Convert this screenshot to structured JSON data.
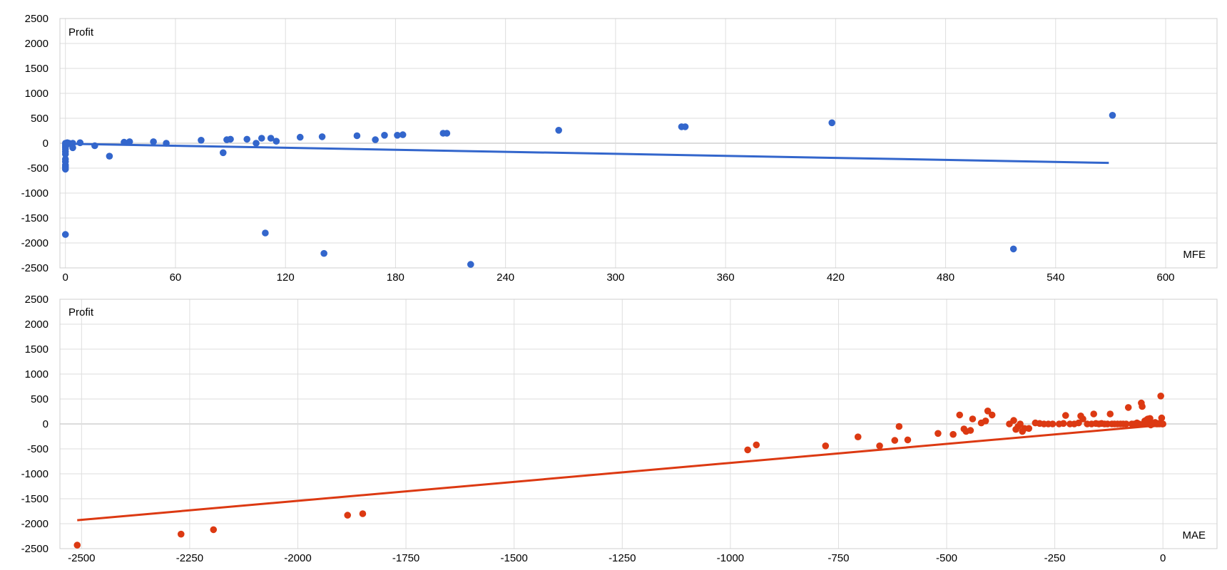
{
  "chart_data": [
    {
      "type": "scatter",
      "ylabel": "Profit",
      "xlabel": "MFE",
      "xlim": [
        -3,
        628
      ],
      "ylim": [
        -2500,
        2500
      ],
      "xticks": [
        0,
        60,
        120,
        180,
        240,
        300,
        360,
        420,
        480,
        540,
        600
      ],
      "yticks": [
        2500,
        2000,
        1500,
        1000,
        500,
        0,
        -500,
        -1000,
        -1500,
        -2000,
        -2500
      ],
      "grid": true,
      "colors": {
        "points": "#3366cc",
        "trend": "#3366cc"
      },
      "series": [
        {
          "points": [
            [
              0,
              0
            ],
            [
              0,
              -40
            ],
            [
              0,
              -80
            ],
            [
              0,
              -120
            ],
            [
              0,
              -170
            ],
            [
              0,
              -220
            ],
            [
              0,
              -320
            ],
            [
              0,
              -370
            ],
            [
              0,
              -440
            ],
            [
              0,
              -480
            ],
            [
              0,
              -520
            ],
            [
              0,
              -1830
            ],
            [
              1,
              10
            ],
            [
              1,
              -20
            ],
            [
              2,
              0
            ],
            [
              4,
              0
            ],
            [
              4,
              -90
            ],
            [
              8,
              10
            ],
            [
              16,
              -50
            ],
            [
              24,
              -260
            ],
            [
              32,
              20
            ],
            [
              35,
              30
            ],
            [
              48,
              30
            ],
            [
              55,
              0
            ],
            [
              74,
              60
            ],
            [
              86,
              -190
            ],
            [
              88,
              70
            ],
            [
              90,
              80
            ],
            [
              99,
              80
            ],
            [
              104,
              0
            ],
            [
              107,
              100
            ],
            [
              109,
              -1800
            ],
            [
              112,
              100
            ],
            [
              115,
              40
            ],
            [
              128,
              120
            ],
            [
              140,
              130
            ],
            [
              141,
              -2210
            ],
            [
              159,
              150
            ],
            [
              169,
              70
            ],
            [
              174,
              160
            ],
            [
              181,
              160
            ],
            [
              184,
              170
            ],
            [
              206,
              200
            ],
            [
              208,
              200
            ],
            [
              221,
              -2430
            ],
            [
              269,
              260
            ],
            [
              336,
              330
            ],
            [
              338,
              330
            ],
            [
              418,
              410
            ],
            [
              517,
              -2120
            ],
            [
              571,
              560
            ]
          ]
        }
      ],
      "trendline": {
        "x": [
          0,
          569
        ],
        "y": [
          -10,
          -395
        ]
      }
    },
    {
      "type": "scatter",
      "ylabel": "Profit",
      "xlabel": "MAE",
      "xlim": [
        -2550,
        125
      ],
      "ylim": [
        -2500,
        2500
      ],
      "xticks": [
        -2500,
        -2250,
        -2000,
        -1750,
        -1500,
        -1250,
        -1000,
        -750,
        -500,
        -250,
        0
      ],
      "yticks": [
        2500,
        2000,
        1500,
        1000,
        500,
        0,
        -500,
        -1000,
        -1500,
        -2000,
        -2500
      ],
      "grid": true,
      "colors": {
        "points": "#dc3912",
        "trend": "#dc3912"
      },
      "series": [
        {
          "points": [
            [
              -2510,
              -2430
            ],
            [
              -2270,
              -2210
            ],
            [
              -2195,
              -2120
            ],
            [
              -1885,
              -1830
            ],
            [
              -1850,
              -1800
            ],
            [
              -960,
              -520
            ],
            [
              -940,
              -420
            ],
            [
              -780,
              -440
            ],
            [
              -705,
              -260
            ],
            [
              -655,
              -440
            ],
            [
              -620,
              -330
            ],
            [
              -610,
              -50
            ],
            [
              -590,
              -320
            ],
            [
              -520,
              -190
            ],
            [
              -485,
              -210
            ],
            [
              -470,
              180
            ],
            [
              -460,
              -100
            ],
            [
              -455,
              -150
            ],
            [
              -445,
              -130
            ],
            [
              -440,
              100
            ],
            [
              -420,
              20
            ],
            [
              -410,
              60
            ],
            [
              -405,
              260
            ],
            [
              -395,
              180
            ],
            [
              -355,
              0
            ],
            [
              -345,
              70
            ],
            [
              -340,
              -110
            ],
            [
              -335,
              -50
            ],
            [
              -330,
              0
            ],
            [
              -325,
              -150
            ],
            [
              -320,
              -90
            ],
            [
              -310,
              -90
            ],
            [
              -295,
              20
            ],
            [
              -285,
              10
            ],
            [
              -275,
              0
            ],
            [
              -265,
              0
            ],
            [
              -255,
              0
            ],
            [
              -240,
              0
            ],
            [
              -230,
              10
            ],
            [
              -225,
              170
            ],
            [
              -215,
              0
            ],
            [
              -205,
              0
            ],
            [
              -195,
              20
            ],
            [
              -190,
              160
            ],
            [
              -185,
              100
            ],
            [
              -175,
              0
            ],
            [
              -165,
              0
            ],
            [
              -160,
              200
            ],
            [
              -155,
              10
            ],
            [
              -148,
              0
            ],
            [
              -142,
              10
            ],
            [
              -135,
              0
            ],
            [
              -128,
              0
            ],
            [
              -122,
              200
            ],
            [
              -118,
              0
            ],
            [
              -112,
              0
            ],
            [
              -105,
              0
            ],
            [
              -98,
              0
            ],
            [
              -92,
              0
            ],
            [
              -85,
              0
            ],
            [
              -80,
              330
            ],
            [
              -72,
              0
            ],
            [
              -66,
              0
            ],
            [
              -60,
              20
            ],
            [
              -55,
              0
            ],
            [
              -50,
              420
            ],
            [
              -48,
              350
            ],
            [
              -45,
              0
            ],
            [
              -42,
              60
            ],
            [
              -38,
              80
            ],
            [
              -35,
              100
            ],
            [
              -33,
              0
            ],
            [
              -30,
              110
            ],
            [
              -28,
              -20
            ],
            [
              -25,
              0
            ],
            [
              -22,
              0
            ],
            [
              -18,
              30
            ],
            [
              -15,
              0
            ],
            [
              -12,
              0
            ],
            [
              -10,
              10
            ],
            [
              -8,
              0
            ],
            [
              -5,
              560
            ],
            [
              -3,
              120
            ],
            [
              -2,
              0
            ],
            [
              -1,
              0
            ],
            [
              0,
              0
            ]
          ]
        }
      ],
      "trendline": {
        "x": [
          -2510,
          0
        ],
        "y": [
          -1930,
          -20
        ]
      }
    }
  ]
}
